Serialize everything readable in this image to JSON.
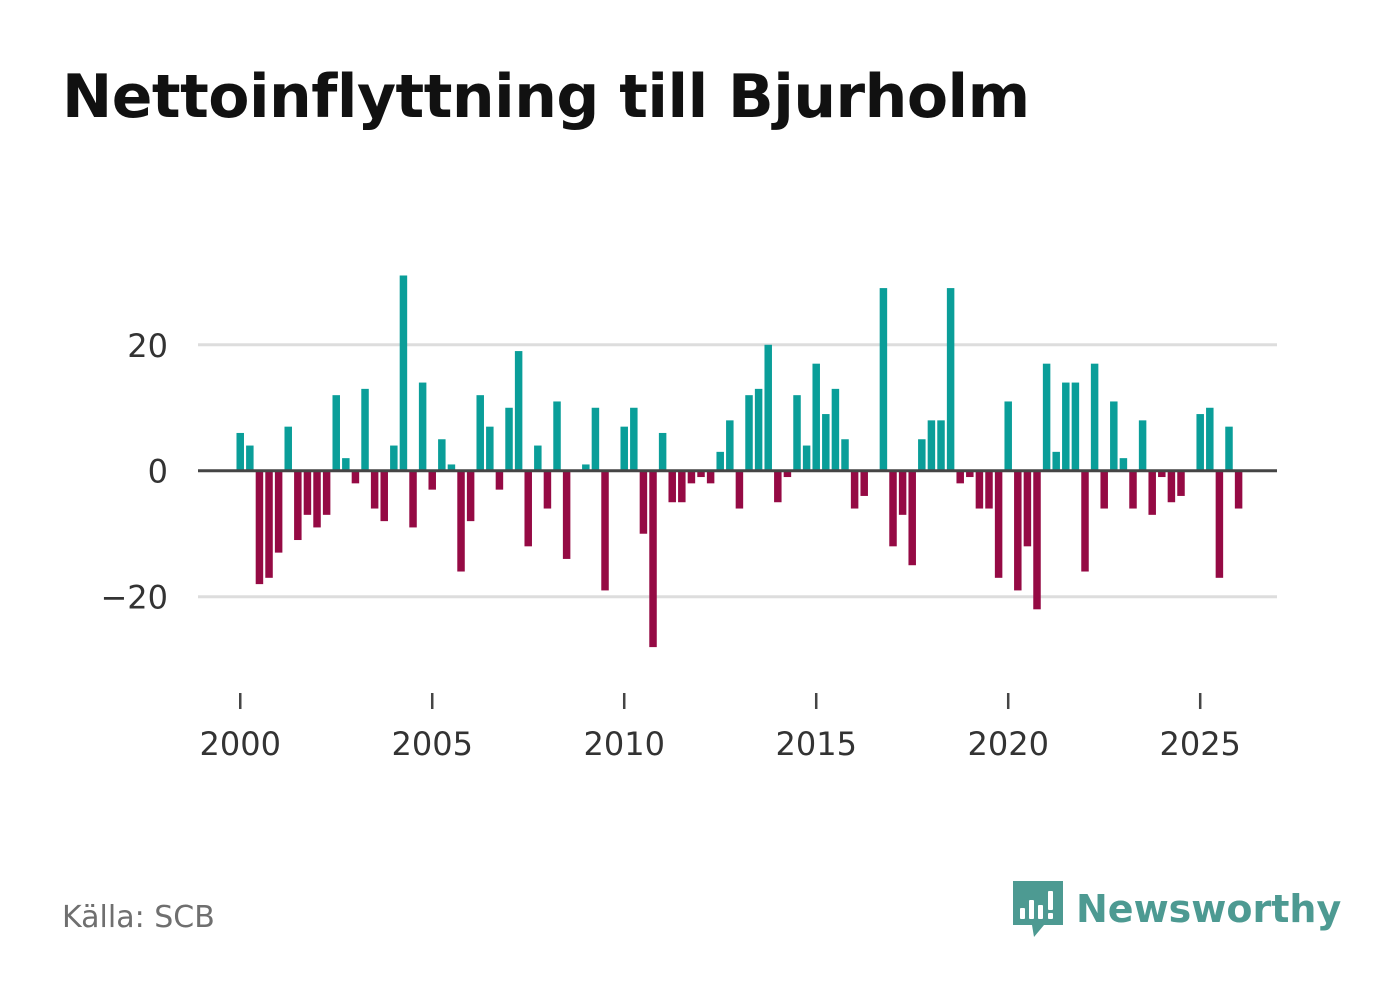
{
  "title": "Nettoinflyttning till Bjurholm",
  "source": "Källa: SCB",
  "brand": {
    "name": "Newsworthy",
    "logo_icon": "newsworthy-logo-icon",
    "color": "#4d9a92"
  },
  "colors": {
    "positive": "#0a9e99",
    "negative": "#950a44",
    "zero_line": "#454545",
    "grid": "#dddddd",
    "tick_text": "#333333"
  },
  "chart_data": {
    "type": "bar",
    "title": "Nettoinflyttning till Bjurholm",
    "xlabel": "",
    "ylabel": "",
    "period": "quarterly",
    "x_start": 2000.0,
    "x_step": 0.25,
    "xlim": [
      1998.9,
      2027.0
    ],
    "ylim": [
      -31,
      36
    ],
    "xticks": [
      2000,
      2005,
      2010,
      2015,
      2020,
      2025
    ],
    "yticks": [
      -20,
      0,
      20
    ],
    "ytick_labels": [
      "−20",
      "0",
      "20"
    ],
    "grid": true,
    "values": [
      6,
      4,
      -18,
      -17,
      -13,
      7,
      -11,
      -7,
      -9,
      -7,
      12,
      2,
      -2,
      13,
      -6,
      -8,
      4,
      31,
      -9,
      14,
      -3,
      5,
      1,
      -16,
      -8,
      12,
      7,
      -3,
      10,
      19,
      -12,
      4,
      -6,
      11,
      -14,
      0,
      1,
      10,
      -19,
      0,
      7,
      10,
      -10,
      -28,
      6,
      -5,
      -5,
      -2,
      -1,
      -2,
      3,
      8,
      -6,
      12,
      13,
      20,
      -5,
      -1,
      12,
      4,
      17,
      9,
      13,
      5,
      -6,
      -4,
      0,
      29,
      -12,
      -7,
      -15,
      5,
      8,
      8,
      29,
      -2,
      -1,
      -6,
      -6,
      -17,
      11,
      -19,
      -12,
      -22,
      17,
      3,
      14,
      14,
      -16,
      17,
      -6,
      11,
      2,
      -6,
      8,
      -7,
      -1,
      -5,
      -4,
      0,
      9,
      10,
      -17,
      7,
      -6
    ]
  }
}
